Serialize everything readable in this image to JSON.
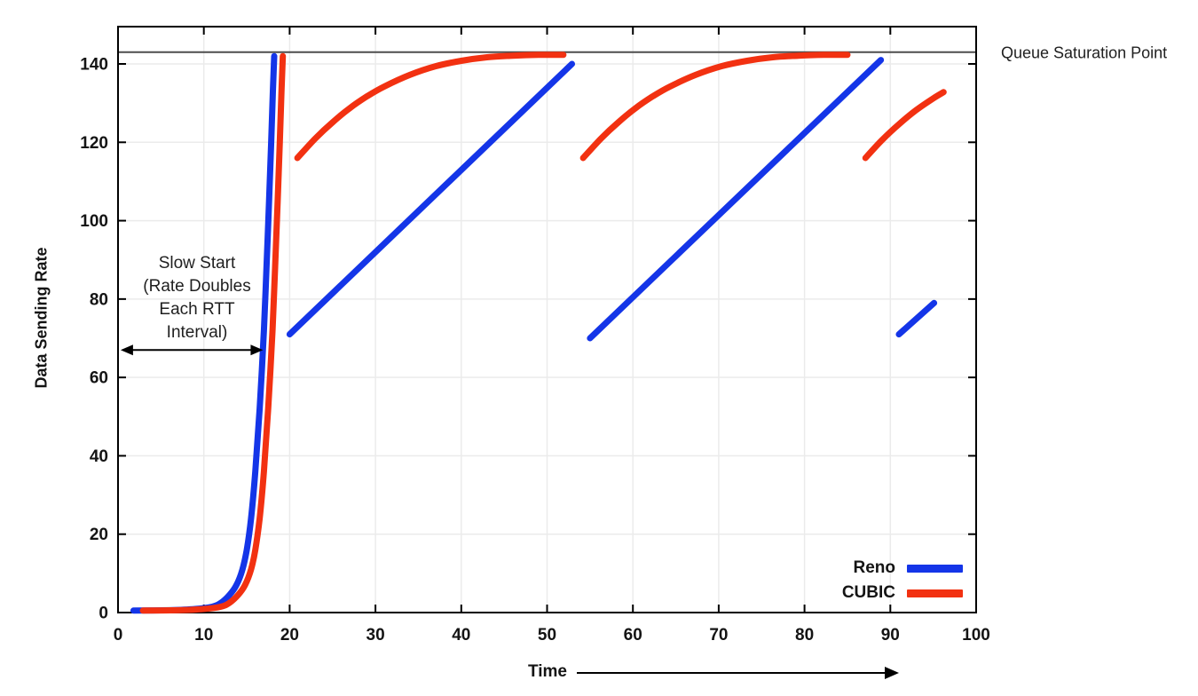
{
  "chart_data": {
    "type": "line",
    "title": "",
    "xlabel": "Time",
    "ylabel": "Data Sending Rate",
    "xlim": [
      0,
      100
    ],
    "ylim": [
      0,
      150
    ],
    "x_ticks": [
      0,
      10,
      20,
      30,
      40,
      50,
      60,
      70,
      80,
      90,
      100
    ],
    "y_ticks": [
      0,
      20,
      40,
      60,
      80,
      100,
      120,
      140
    ],
    "grid": true,
    "legend_position": "bottom-right-inside",
    "saturation_line": {
      "value": 143,
      "label": "Queue Saturation Point",
      "color": "#4d4d4d"
    },
    "annotation": {
      "lines": [
        "Slow Start",
        "(Rate Doubles",
        "Each RTT",
        "Interval)"
      ],
      "arrow_x_range": [
        0.3,
        16.9
      ],
      "arrow_y": 67
    },
    "series": [
      {
        "name": "Reno",
        "color": "#1435e8",
        "segments": [
          [
            [
              1.8,
              0.5
            ],
            [
              6,
              0.6
            ],
            [
              9,
              0.9
            ],
            [
              11,
              1.5
            ],
            [
              12,
              2.5
            ],
            [
              13,
              4.5
            ],
            [
              13.8,
              7
            ],
            [
              14.5,
              11
            ],
            [
              15,
              16
            ],
            [
              15.5,
              24
            ],
            [
              16,
              36
            ],
            [
              16.5,
              52
            ],
            [
              17,
              72
            ],
            [
              17.3,
              88
            ],
            [
              17.6,
              105
            ],
            [
              17.85,
              120
            ],
            [
              18.05,
              133
            ],
            [
              18.2,
              142
            ]
          ],
          [
            [
              20,
              71
            ],
            [
              52.9,
              140
            ]
          ],
          [
            [
              55,
              70
            ],
            [
              88.9,
              141
            ]
          ],
          [
            [
              91,
              71
            ],
            [
              95.1,
              79
            ]
          ]
        ]
      },
      {
        "name": "CUBIC",
        "color": "#f23111",
        "segments": [
          [
            [
              2.9,
              0.5
            ],
            [
              7,
              0.6
            ],
            [
              10,
              0.9
            ],
            [
              12,
              1.5
            ],
            [
              13,
              2.5
            ],
            [
              14,
              4.5
            ],
            [
              14.8,
              7
            ],
            [
              15.5,
              11
            ],
            [
              16,
              16
            ],
            [
              16.5,
              24
            ],
            [
              17,
              36
            ],
            [
              17.5,
              52
            ],
            [
              18,
              72
            ],
            [
              18.3,
              88
            ],
            [
              18.6,
              105
            ],
            [
              18.85,
              120
            ],
            [
              19.05,
              133
            ],
            [
              19.2,
              142
            ]
          ],
          [
            [
              20.9,
              116
            ],
            [
              23,
              121
            ],
            [
              25,
              125.1
            ],
            [
              27,
              128.7
            ],
            [
              29,
              131.7
            ],
            [
              31,
              134.2
            ],
            [
              34,
              137.2
            ],
            [
              37,
              139.4
            ],
            [
              40,
              140.8
            ],
            [
              43,
              141.7
            ],
            [
              46,
              142.1
            ],
            [
              49,
              142.3
            ],
            [
              51.9,
              142.3
            ]
          ],
          [
            [
              54.2,
              116
            ],
            [
              56.3,
              121
            ],
            [
              58.3,
              125.1
            ],
            [
              60.3,
              128.7
            ],
            [
              62.3,
              131.7
            ],
            [
              64.3,
              134.2
            ],
            [
              67.3,
              137.2
            ],
            [
              70.3,
              139.4
            ],
            [
              73.3,
              140.8
            ],
            [
              76.3,
              141.7
            ],
            [
              79.3,
              142.1
            ],
            [
              82.3,
              142.3
            ],
            [
              85,
              142.3
            ]
          ],
          [
            [
              87.1,
              116
            ],
            [
              89,
              120.5
            ],
            [
              91,
              124.6
            ],
            [
              93,
              128.2
            ],
            [
              95,
              131.2
            ],
            [
              96.2,
              132.8
            ]
          ]
        ]
      }
    ]
  }
}
